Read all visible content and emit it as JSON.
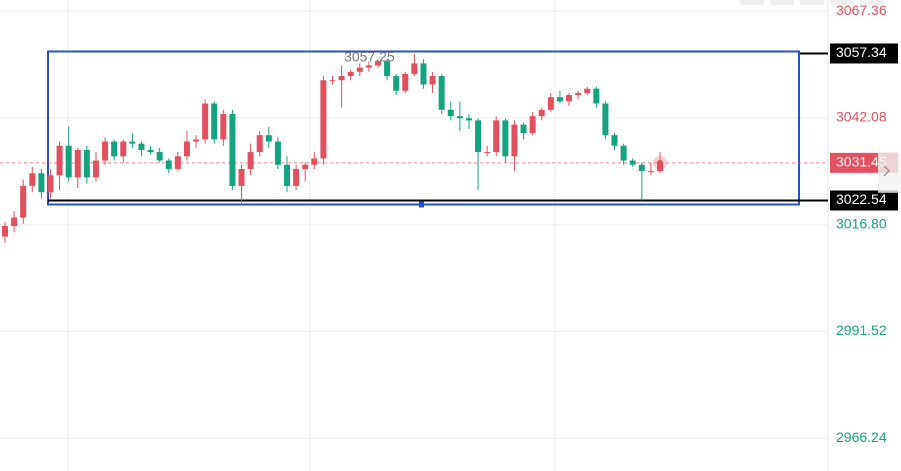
{
  "chart_data": {
    "type": "candlestick",
    "open": [
      3014.0,
      3016.5,
      3018.5,
      3026.0,
      3029.0,
      3024.5,
      3028.5,
      3035.5,
      3028.0,
      3034.5,
      3028.0,
      3032.0,
      3036.5,
      3033.0,
      3036.5,
      3036.0,
      3034.5,
      3034.0,
      3032.0,
      3030.0,
      3033.0,
      3036.5,
      3037.0,
      3045.5,
      3037.0,
      3043.0,
      3026.0,
      3030.0,
      3034.0,
      3038.0,
      3036.5,
      3031.0,
      3026.0,
      3030.0,
      3031.0,
      3032.5,
      3051.0,
      3051.0,
      3052.0,
      3053.0,
      3054.0,
      3054.5,
      3055.5,
      3052.0,
      3048.5,
      3052.5,
      3055.0,
      3050.0,
      3052.0,
      3044.0,
      3042.5,
      3042.0,
      3041.5,
      3034.0,
      3034.0,
      3041.5,
      3033.0,
      3040.5,
      3038.5,
      3042.5,
      3044.0,
      3047.0,
      3046.0,
      3047.5,
      3048.0,
      3049.0,
      3045.5,
      3038.0,
      3035.5,
      3032.0,
      3031.0,
      3029.5,
      3029.5
    ],
    "high": [
      3017.5,
      3020.0,
      3027.5,
      3030.5,
      3030.0,
      3030.0,
      3036.5,
      3040.0,
      3035.0,
      3035.5,
      3034.0,
      3037.5,
      3037.0,
      3037.0,
      3038.5,
      3036.5,
      3035.5,
      3035.0,
      3032.5,
      3034.0,
      3039.0,
      3038.0,
      3046.5,
      3046.0,
      3044.0,
      3044.0,
      3031.0,
      3036.0,
      3039.0,
      3040.0,
      3037.5,
      3033.0,
      3031.0,
      3031.5,
      3034.0,
      3052.0,
      3052.0,
      3054.5,
      3053.5,
      3055.0,
      3055.5,
      3056.0,
      3056.0,
      3052.5,
      3053.0,
      3057.25,
      3056.0,
      3053.0,
      3052.5,
      3046.0,
      3046.0,
      3043.0,
      3042.0,
      3035.5,
      3042.5,
      3042.0,
      3041.5,
      3041.0,
      3043.5,
      3044.5,
      3048.0,
      3048.5,
      3048.0,
      3048.5,
      3049.5,
      3049.5,
      3046.0,
      3038.5,
      3036.0,
      3032.5,
      3031.5,
      3031.5,
      3034.0
    ],
    "low": [
      3012.5,
      3015.0,
      3017.0,
      3024.5,
      3023.0,
      3023.0,
      3025.0,
      3027.0,
      3025.5,
      3026.5,
      3027.0,
      3031.0,
      3032.0,
      3031.5,
      3035.0,
      3033.0,
      3033.5,
      3031.5,
      3029.0,
      3029.5,
      3032.0,
      3035.0,
      3036.0,
      3036.0,
      3035.5,
      3025.0,
      3022.0,
      3028.5,
      3033.0,
      3035.0,
      3030.0,
      3024.5,
      3025.0,
      3027.0,
      3030.0,
      3031.0,
      3050.0,
      3044.5,
      3051.0,
      3052.0,
      3053.0,
      3054.0,
      3051.0,
      3047.5,
      3048.0,
      3052.0,
      3049.0,
      3048.0,
      3043.0,
      3041.5,
      3039.0,
      3039.5,
      3025.0,
      3033.0,
      3033.0,
      3031.5,
      3029.5,
      3037.0,
      3038.0,
      3041.5,
      3043.5,
      3045.5,
      3045.0,
      3046.5,
      3047.5,
      3044.5,
      3037.0,
      3034.5,
      3031.0,
      3030.5,
      3022.54,
      3028.5,
      3029.0
    ],
    "close": [
      3016.5,
      3018.5,
      3026.0,
      3029.0,
      3024.5,
      3028.5,
      3035.5,
      3028.0,
      3034.5,
      3028.0,
      3032.0,
      3036.5,
      3033.0,
      3036.5,
      3036.0,
      3034.5,
      3034.0,
      3032.0,
      3030.0,
      3033.0,
      3036.5,
      3037.0,
      3045.5,
      3037.0,
      3043.0,
      3026.0,
      3030.0,
      3034.0,
      3038.0,
      3036.5,
      3031.0,
      3026.0,
      3030.0,
      3031.0,
      3032.5,
      3051.0,
      3051.0,
      3052.0,
      3053.0,
      3054.0,
      3054.5,
      3055.5,
      3052.0,
      3048.5,
      3052.5,
      3055.0,
      3050.0,
      3052.0,
      3044.0,
      3042.5,
      3042.0,
      3041.5,
      3034.0,
      3034.0,
      3041.5,
      3033.0,
      3040.5,
      3038.5,
      3042.5,
      3044.0,
      3047.0,
      3046.0,
      3047.5,
      3048.0,
      3049.0,
      3045.5,
      3038.0,
      3035.5,
      3032.0,
      3031.0,
      3029.5,
      3029.5,
      3031.45
    ],
    "up_color": "#e0505f",
    "down_color": "#14a37f",
    "ylim": [
      2958.5,
      3070.0
    ],
    "yticks": [
      3067.36,
      3042.08,
      {
        "value": 3016.8,
        "label": "3016.80"
      },
      2991.52,
      2966.24
    ],
    "grid": true,
    "levels": [
      3057.34,
      3022.54
    ],
    "box_color": "#2b4fc9"
  }
}
